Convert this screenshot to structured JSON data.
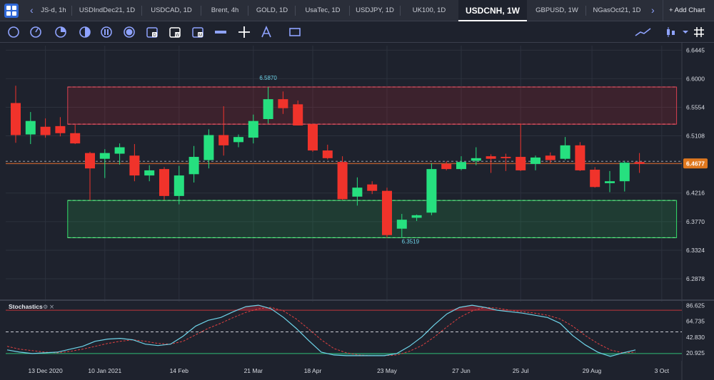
{
  "tabs": [
    {
      "label": "JS-d, 1h"
    },
    {
      "label": "USDIndDec21, 1D"
    },
    {
      "label": "USDCAD, 1D"
    },
    {
      "label": "Brent, 4h"
    },
    {
      "label": "GOLD, 1D"
    },
    {
      "label": "UsaTec, 1D"
    },
    {
      "label": "USDJPY, 1D"
    },
    {
      "label": "UK100, 1D"
    },
    {
      "label": "USDCNH, 1W"
    },
    {
      "label": "GBPUSD, 1W"
    },
    {
      "label": "NGasOct21, 1D"
    }
  ],
  "add_chart_label": "+ Add Chart",
  "toolbar_icons": [
    "circle-tool-icon",
    "clock-tool-icon",
    "pie-tool-icon",
    "half-circle-icon",
    "bars-circle-icon",
    "filled-circle-icon",
    "d-calendar-icon",
    "w-calendar-icon",
    "m-calendar-icon",
    "hline-tool-icon",
    "crosshair-icon",
    "fib-tool-icon",
    "rectangle-tool-icon",
    "trend-tool-icon",
    "candle-type-icon",
    "settings-icon",
    "grid-icon"
  ],
  "colors": {
    "up": "#26e07f",
    "down": "#f0332b",
    "stoch_main": "#6ed3e8",
    "stoch_signal": "#e04040"
  },
  "chart_data": {
    "type": "candlestick",
    "price_ylim": [
      6.2556,
      6.656
    ],
    "price_ticks": [
      "6.6445",
      "6.6000",
      "6.5554",
      "6.5108",
      "6.4662",
      "6.4216",
      "6.3770",
      "6.3324",
      "6.2878"
    ],
    "price_tick_values": [
      6.6445,
      6.6,
      6.5554,
      6.5108,
      6.4662,
      6.4216,
      6.377,
      6.3324,
      6.2878
    ],
    "current_price_label": "6.4677",
    "current_price": 6.4677,
    "high_annotation": {
      "label": "6.5870",
      "value": 6.587,
      "index": 17
    },
    "low_annotation": {
      "label": "6.3519",
      "value": 6.3519,
      "index": 26
    },
    "zones": [
      {
        "kind": "resistance",
        "top": 6.587,
        "bottom": 6.529,
        "from_index": 3.5,
        "to_index": 44.5
      },
      {
        "kind": "support",
        "top": 6.41,
        "bottom": 6.3519,
        "from_index": 3.5,
        "to_index": 44.5
      }
    ],
    "candles": [
      {
        "o": 6.562,
        "h": 6.589,
        "l": 6.5,
        "c": 6.512
      },
      {
        "o": 6.513,
        "h": 6.548,
        "l": 6.498,
        "c": 6.534
      },
      {
        "o": 6.525,
        "h": 6.538,
        "l": 6.508,
        "c": 6.512
      },
      {
        "o": 6.526,
        "h": 6.54,
        "l": 6.51,
        "c": 6.515
      },
      {
        "o": 6.515,
        "h": 6.528,
        "l": 6.498,
        "c": 6.499
      },
      {
        "o": 6.484,
        "h": 6.486,
        "l": 6.41,
        "c": 6.46
      },
      {
        "o": 6.475,
        "h": 6.49,
        "l": 6.445,
        "c": 6.484
      },
      {
        "o": 6.483,
        "h": 6.499,
        "l": 6.466,
        "c": 6.493
      },
      {
        "o": 6.48,
        "h": 6.498,
        "l": 6.44,
        "c": 6.449
      },
      {
        "o": 6.449,
        "h": 6.465,
        "l": 6.44,
        "c": 6.457
      },
      {
        "o": 6.459,
        "h": 6.462,
        "l": 6.411,
        "c": 6.417
      },
      {
        "o": 6.417,
        "h": 6.464,
        "l": 6.404,
        "c": 6.449
      },
      {
        "o": 6.451,
        "h": 6.495,
        "l": 6.438,
        "c": 6.478
      },
      {
        "o": 6.473,
        "h": 6.521,
        "l": 6.46,
        "c": 6.512
      },
      {
        "o": 6.512,
        "h": 6.557,
        "l": 6.48,
        "c": 6.496
      },
      {
        "o": 6.501,
        "h": 6.513,
        "l": 6.493,
        "c": 6.509
      },
      {
        "o": 6.508,
        "h": 6.544,
        "l": 6.499,
        "c": 6.534
      },
      {
        "o": 6.537,
        "h": 6.587,
        "l": 6.53,
        "c": 6.568
      },
      {
        "o": 6.568,
        "h": 6.58,
        "l": 6.545,
        "c": 6.554
      },
      {
        "o": 6.56,
        "h": 6.566,
        "l": 6.527,
        "c": 6.527
      },
      {
        "o": 6.529,
        "h": 6.53,
        "l": 6.486,
        "c": 6.488
      },
      {
        "o": 6.488,
        "h": 6.497,
        "l": 6.474,
        "c": 6.476
      },
      {
        "o": 6.47,
        "h": 6.479,
        "l": 6.411,
        "c": 6.412
      },
      {
        "o": 6.416,
        "h": 6.446,
        "l": 6.402,
        "c": 6.43
      },
      {
        "o": 6.435,
        "h": 6.44,
        "l": 6.42,
        "c": 6.425
      },
      {
        "o": 6.425,
        "h": 6.43,
        "l": 6.3519,
        "c": 6.356
      },
      {
        "o": 6.366,
        "h": 6.389,
        "l": 6.3519,
        "c": 6.38
      },
      {
        "o": 6.383,
        "h": 6.388,
        "l": 6.378,
        "c": 6.387
      },
      {
        "o": 6.391,
        "h": 6.468,
        "l": 6.387,
        "c": 6.459
      },
      {
        "o": 6.467,
        "h": 6.471,
        "l": 6.457,
        "c": 6.459
      },
      {
        "o": 6.459,
        "h": 6.479,
        "l": 6.457,
        "c": 6.47
      },
      {
        "o": 6.472,
        "h": 6.493,
        "l": 6.465,
        "c": 6.476
      },
      {
        "o": 6.479,
        "h": 6.482,
        "l": 6.453,
        "c": 6.475
      },
      {
        "o": 6.478,
        "h": 6.483,
        "l": 6.456,
        "c": 6.476
      },
      {
        "o": 6.478,
        "h": 6.53,
        "l": 6.456,
        "c": 6.457
      },
      {
        "o": 6.467,
        "h": 6.48,
        "l": 6.457,
        "c": 6.477
      },
      {
        "o": 6.48,
        "h": 6.485,
        "l": 6.468,
        "c": 6.473
      },
      {
        "o": 6.475,
        "h": 6.509,
        "l": 6.473,
        "c": 6.496
      },
      {
        "o": 6.496,
        "h": 6.501,
        "l": 6.456,
        "c": 6.457
      },
      {
        "o": 6.458,
        "h": 6.462,
        "l": 6.43,
        "c": 6.431
      },
      {
        "o": 6.437,
        "h": 6.456,
        "l": 6.423,
        "c": 6.44
      },
      {
        "o": 6.44,
        "h": 6.472,
        "l": 6.424,
        "c": 6.469
      },
      {
        "o": 6.47,
        "h": 6.484,
        "l": 6.453,
        "c": 6.467
      }
    ],
    "x_labels": [
      {
        "label": "13 Dec 2020",
        "index": 2
      },
      {
        "label": "10 Jan 2021",
        "index": 6
      },
      {
        "label": "14 Feb",
        "index": 11
      },
      {
        "label": "21 Mar",
        "index": 16
      },
      {
        "label": "18 Apr",
        "index": 20
      },
      {
        "label": "23 May",
        "index": 25
      },
      {
        "label": "27 Jun",
        "index": 30
      },
      {
        "label": "25 Jul",
        "index": 34
      },
      {
        "label": "29 Aug",
        "index": 38.8
      },
      {
        "label": "3 Oct",
        "index": 43.5
      }
    ],
    "stochastics": {
      "title": "Stochastics",
      "ylim": [
        10,
        92
      ],
      "ticks": [
        "86.625",
        "64.735",
        "42.830",
        "20.925"
      ],
      "tick_values": [
        86.625,
        64.735,
        42.83,
        20.925
      ],
      "overbought": 80,
      "mid": 50,
      "oversold": 20,
      "main": [
        25,
        22,
        20,
        21,
        22,
        26,
        30,
        37,
        40,
        41,
        39,
        33,
        31,
        33,
        44,
        58,
        66,
        70,
        78,
        85,
        87,
        82,
        70,
        55,
        38,
        22,
        18,
        17,
        17,
        17,
        17,
        20,
        30,
        43,
        60,
        75,
        84,
        87,
        84,
        80,
        78,
        76,
        73,
        70,
        62,
        45,
        32,
        22,
        16,
        21,
        25
      ],
      "signal": [
        30,
        26,
        24,
        22,
        21,
        23,
        26,
        30,
        34,
        37,
        39,
        37,
        34,
        33,
        37,
        46,
        55,
        62,
        70,
        77,
        82,
        84,
        79,
        68,
        54,
        39,
        27,
        21,
        18,
        17,
        17,
        18,
        23,
        31,
        43,
        57,
        70,
        79,
        84,
        83,
        80,
        78,
        76,
        73,
        68,
        58,
        45,
        34,
        25,
        21,
        22
      ]
    }
  }
}
